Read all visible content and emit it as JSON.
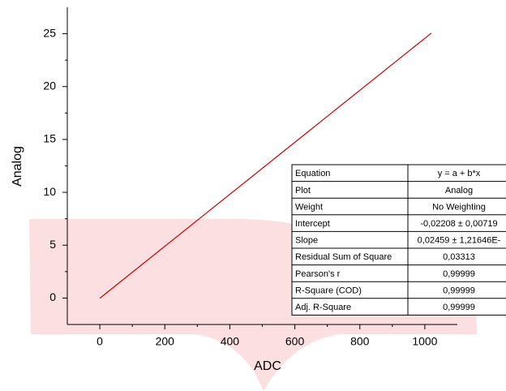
{
  "chart_data": {
    "type": "line",
    "x_label": "ADC",
    "y_label": "Analog",
    "x": [
      0,
      1020
    ],
    "values": [
      -0.022,
      25.06
    ],
    "color": "#cc0000",
    "xlim": [
      -100,
      1100
    ],
    "ylim": [
      -2.5,
      27.5
    ],
    "xticks": [
      0,
      200,
      400,
      600,
      800,
      1000
    ],
    "yticks": [
      0,
      5,
      10,
      15,
      20,
      25
    ],
    "grid": false,
    "inset_table": {
      "rows": [
        [
          "Equation",
          "y = a + b*x"
        ],
        [
          "Plot",
          "Analog"
        ],
        [
          "Weight",
          "No Weighting"
        ],
        [
          "Intercept",
          "-0,02208 ± 0,00719"
        ],
        [
          "Slope",
          "0,02459 ± 1,21646E-"
        ],
        [
          "Residual Sum of Square",
          "0,03313"
        ],
        [
          "Pearson's r",
          "0,99999"
        ],
        [
          "R-Square (COD)",
          "0,99999"
        ],
        [
          "Adj. R-Square",
          "0,99999"
        ]
      ]
    }
  }
}
